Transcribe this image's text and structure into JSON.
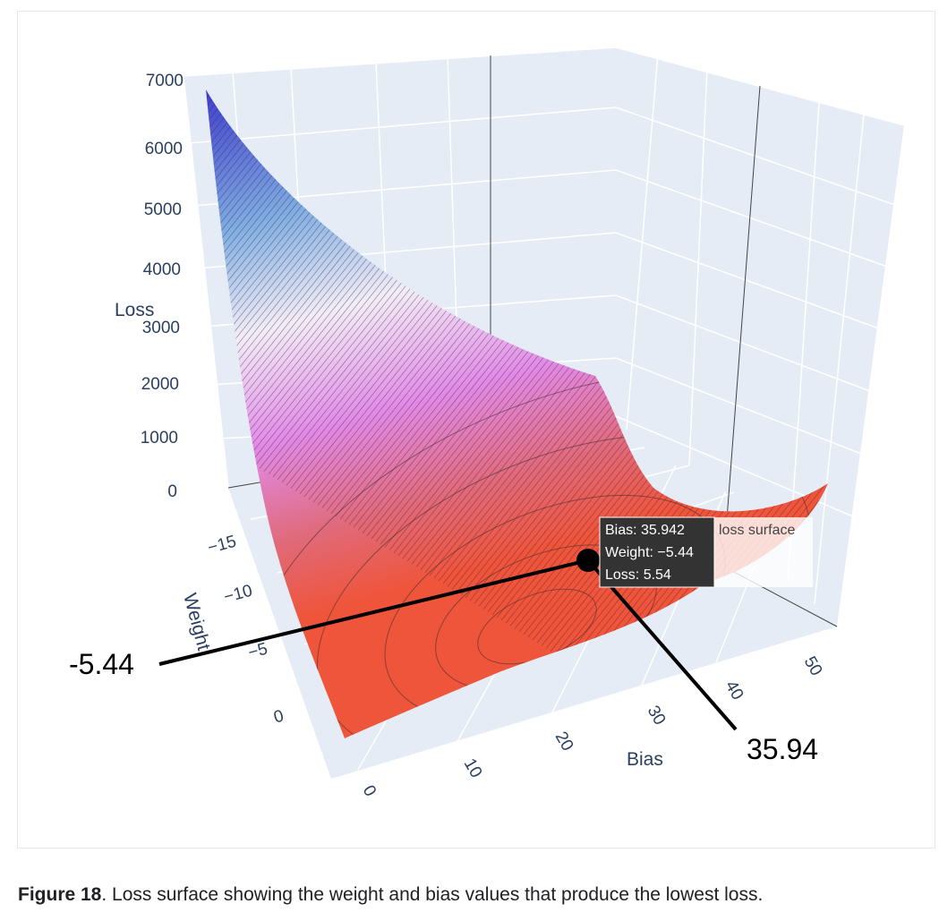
{
  "caption": {
    "figure_label": "Figure 18",
    "text": ". Loss surface showing the weight and bias values that produce the lowest loss."
  },
  "colors": {
    "scene_bg": "#e5ecf6",
    "grid": "#ffffff",
    "axis_text": "#2a3f5f",
    "surface_low": "#ef553b",
    "surface_mid": "#e08ae8",
    "surface_high": "#3d3dcf",
    "marker": "#000000"
  },
  "chart_data": {
    "type": "surface",
    "x_axis": {
      "title": "Bias",
      "ticks": [
        "0",
        "10",
        "20",
        "30",
        "40",
        "50"
      ],
      "range": [
        0,
        52
      ]
    },
    "y_axis": {
      "title": "Weight",
      "ticks": [
        "−15",
        "−10",
        "−5",
        "0"
      ],
      "range": [
        -16,
        1
      ]
    },
    "z_axis": {
      "title": "Loss",
      "ticks": [
        "0",
        "1000",
        "2000",
        "3000",
        "4000",
        "5000",
        "6000",
        "7000"
      ],
      "range": [
        0,
        7000
      ]
    },
    "surface_name": "loss surface",
    "minimum": {
      "bias": 35.942,
      "weight": -5.44,
      "loss": 5.54
    },
    "hover": {
      "lines": [
        "Bias: 35.942",
        "Weight: −5.44",
        "Loss: 5.54"
      ],
      "trace_name": "loss surface"
    },
    "annotations": {
      "weight": "-5.44",
      "bias": "35.94"
    }
  }
}
